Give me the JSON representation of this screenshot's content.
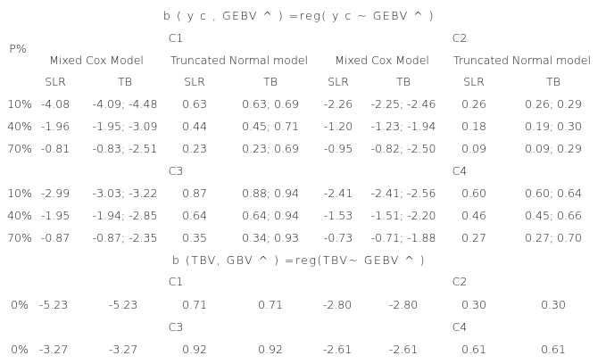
{
  "table1": {
    "title": "b ( y c , GEBV ^ ) =reg( y c ~ GEBV ^ )",
    "p_header": "P%",
    "model_headers": [
      "Mixed Cox Model",
      "Truncated Normal model",
      "Mixed Cox Model",
      "Truncated Normal model"
    ],
    "sub_headers": [
      "SLR",
      "TB",
      "SLR",
      "TB",
      "SLR",
      "TB",
      "SLR",
      "TB"
    ],
    "blocks": [
      {
        "groups": [
          "C1",
          "C2"
        ],
        "rows": [
          [
            "10%",
            "-4.08",
            "-4.09; -4.48",
            "0.63",
            "0.63; 0.69",
            "-2.26",
            "-2.25; -2.46",
            "0.26",
            "0.26; 0.29"
          ],
          [
            "40%",
            "-1.96",
            "-1.95; -3.09",
            "0.44",
            "0.45; 0.71",
            "-1.20",
            "-1.23; -1.94",
            "0.18",
            "0.19; 0.30"
          ],
          [
            "70%",
            "-0.81",
            "-0.83; -2.51",
            "0.23",
            "0.23; 0.69",
            "-0.95",
            "-0.82; -2.50",
            "0.09",
            "0.09; 0.29"
          ]
        ]
      },
      {
        "groups": [
          "C3",
          "C4"
        ],
        "rows": [
          [
            "10%",
            "-2.99",
            "-3.03; -3.22",
            "0.87",
            "0.88; 0.94",
            "-2.41",
            "-2.41; -2.56",
            "0.60",
            "0.60; 0.64"
          ],
          [
            "40%",
            "-1.95",
            "-1.94; -2.85",
            "0.64",
            "0.64; 0.94",
            "-1.53",
            "-1.51; -2.20",
            "0.46",
            "0.45; 0.66"
          ],
          [
            "70%",
            "-0.87",
            "-0.87; -2.35",
            "0.35",
            "0.34; 0.93",
            "-0.73",
            "-0.71; -1.88",
            "0.27",
            "0.27; 0.70"
          ]
        ]
      }
    ]
  },
  "table2": {
    "title": "b (TBV,  GBV ^ ) =reg(TBV~ GEBV ^ )",
    "blocks": [
      {
        "groups": [
          "C1",
          "C2"
        ],
        "rows": [
          [
            "0%",
            "-5.23",
            "-5.23",
            "0.71",
            "0.71",
            "-2.80",
            "-2.80",
            "0.30",
            "0.30"
          ]
        ]
      },
      {
        "groups": [
          "C3",
          "C4"
        ],
        "rows": [
          [
            "0%",
            "-3.27",
            "-3.27",
            "0.92",
            "0.92",
            "-2.61",
            "-2.61",
            "0.61",
            "0.61"
          ]
        ]
      }
    ]
  }
}
